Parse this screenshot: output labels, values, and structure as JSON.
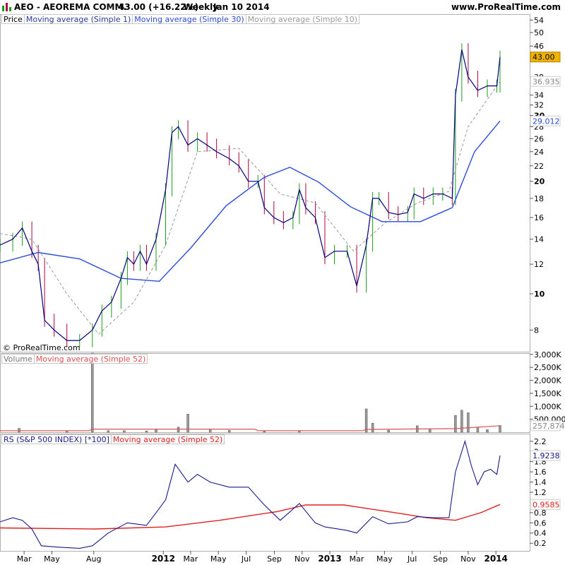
{
  "header": {
    "title": "AEO - AEOREMA COMM.",
    "price_change": "43.00 (+16.22%)",
    "period": "Weekly",
    "date": "Jan 10 2014",
    "site": "www.ProRealTime.com"
  },
  "copyright": "© ProRealTime.com",
  "legends": {
    "price": [
      "Price",
      "Moving average (Simple 1)",
      "Moving average (Simple 30)",
      "Moving average (Simple 10)"
    ],
    "volume": [
      "Volume",
      "Moving average (Simple 52)"
    ],
    "rs": [
      "RS (S&P 500 INDEX) [*100]",
      "Moving average (Simple 52)"
    ]
  },
  "colors": {
    "up_bar": "#1a9e1a",
    "down_bar": "#b00040",
    "price_line": "#000080",
    "ma30": "#2a4bdb",
    "ma10": "#9a9a9a",
    "volume_bar": "#9a9a9a",
    "volume_ma": "#e05050",
    "rs_line": "#1a1a8c",
    "rs_ma": "#e02020",
    "last_price_badge": "#f0b400"
  },
  "chart_data": [
    {
      "type": "line",
      "panel": "price",
      "scale": "log",
      "ylim": [
        7,
        56
      ],
      "yticks": [
        "8",
        "10",
        "12",
        "14",
        "16",
        "18",
        "20",
        "22",
        "24",
        "26",
        "28",
        "30",
        "32",
        "34",
        "38",
        "46",
        "50",
        "54"
      ],
      "xticks": [
        "Mar",
        "May",
        "Aug",
        "2012",
        "Mar",
        "May",
        "Jul",
        "Sep",
        "Nov",
        "2013",
        "Mar",
        "May",
        "Jul",
        "Sep",
        "Nov",
        "2014"
      ],
      "x_range": [
        "2011-01-07",
        "2014-01-10"
      ],
      "series": [
        {
          "name": "Moving average (Simple 1)",
          "points": [
            [
              "2011-01-07",
              13.5
            ],
            [
              "2011-02-04",
              14.0
            ],
            [
              "2011-02-25",
              15.0
            ],
            [
              "2011-03-18",
              13.0
            ],
            [
              "2011-04-01",
              12.0
            ],
            [
              "2011-04-15",
              8.5
            ],
            [
              "2011-05-06",
              8.0
            ],
            [
              "2011-06-03",
              7.5
            ],
            [
              "2011-07-01",
              7.5
            ],
            [
              "2011-07-29",
              8.0
            ],
            [
              "2011-08-19",
              9.0
            ],
            [
              "2011-09-09",
              9.5
            ],
            [
              "2011-09-30",
              11.0
            ],
            [
              "2011-10-14",
              12.5
            ],
            [
              "2011-10-28",
              12.0
            ],
            [
              "2011-11-11",
              13.0
            ],
            [
              "2011-11-25",
              12.0
            ],
            [
              "2011-12-16",
              14.0
            ],
            [
              "2012-01-06",
              19.0
            ],
            [
              "2012-01-20",
              27.0
            ],
            [
              "2012-02-03",
              28.0
            ],
            [
              "2012-02-24",
              25.0
            ],
            [
              "2012-03-16",
              26.0
            ],
            [
              "2012-04-06",
              25.0
            ],
            [
              "2012-04-27",
              24.0
            ],
            [
              "2012-05-25",
              23.0
            ],
            [
              "2012-06-15",
              22.0
            ],
            [
              "2012-07-06",
              20.0
            ],
            [
              "2012-07-27",
              20.0
            ],
            [
              "2012-08-10",
              17.0
            ],
            [
              "2012-08-31",
              16.0
            ],
            [
              "2012-09-21",
              15.5
            ],
            [
              "2012-10-12",
              16.0
            ],
            [
              "2012-10-26",
              19.0
            ],
            [
              "2012-11-09",
              17.0
            ],
            [
              "2012-11-30",
              16.0
            ],
            [
              "2012-12-21",
              12.5
            ],
            [
              "2013-01-11",
              13.0
            ],
            [
              "2013-02-08",
              13.0
            ],
            [
              "2013-03-01",
              10.5
            ],
            [
              "2013-03-22",
              13.5
            ],
            [
              "2013-04-05",
              18.0
            ],
            [
              "2013-04-19",
              18.0
            ],
            [
              "2013-05-10",
              16.5
            ],
            [
              "2013-05-31",
              16.3
            ],
            [
              "2013-06-21",
              16.5
            ],
            [
              "2013-07-05",
              18.5
            ],
            [
              "2013-07-26",
              18.0
            ],
            [
              "2013-08-16",
              18.5
            ],
            [
              "2013-09-06",
              18.5
            ],
            [
              "2013-09-27",
              18.0
            ],
            [
              "2013-10-04",
              34.0
            ],
            [
              "2013-10-18",
              45.0
            ],
            [
              "2013-11-01",
              38.0
            ],
            [
              "2013-11-22",
              35.0
            ],
            [
              "2013-12-13",
              36.0
            ],
            [
              "2014-01-03",
              36.0
            ],
            [
              "2014-01-10",
              43.0
            ]
          ]
        },
        {
          "name": "Moving average (Simple 30)",
          "points": [
            [
              "2011-01-07",
              12.1
            ],
            [
              "2011-04-01",
              12.9
            ],
            [
              "2011-07-01",
              12.4
            ],
            [
              "2011-09-30",
              11.0
            ],
            [
              "2011-12-23",
              10.8
            ],
            [
              "2012-03-02",
              13.3
            ],
            [
              "2012-05-18",
              17.2
            ],
            [
              "2012-08-10",
              20.5
            ],
            [
              "2012-10-05",
              21.8
            ],
            [
              "2012-12-07",
              19.9
            ],
            [
              "2013-02-15",
              17.1
            ],
            [
              "2013-04-26",
              15.6
            ],
            [
              "2013-07-19",
              15.6
            ],
            [
              "2013-09-27",
              17.0
            ],
            [
              "2013-11-15",
              24.0
            ],
            [
              "2014-01-10",
              29.0
            ]
          ]
        },
        {
          "name": "Moving average (Simple 10)",
          "points": [
            [
              "2011-01-07",
              14.5
            ],
            [
              "2011-03-18",
              14.0
            ],
            [
              "2011-06-03",
              10.0
            ],
            [
              "2011-08-12",
              7.8
            ],
            [
              "2011-10-28",
              9.5
            ],
            [
              "2012-01-06",
              13.5
            ],
            [
              "2012-03-16",
              24.0
            ],
            [
              "2012-06-15",
              24.5
            ],
            [
              "2012-09-14",
              18.5
            ],
            [
              "2012-11-30",
              17.5
            ],
            [
              "2013-02-22",
              13.0
            ],
            [
              "2013-05-03",
              15.5
            ],
            [
              "2013-07-12",
              17.5
            ],
            [
              "2013-09-20",
              18.8
            ],
            [
              "2013-11-01",
              28.0
            ],
            [
              "2014-01-10",
              37.0
            ]
          ]
        }
      ],
      "last_labels": [
        {
          "series": "Moving average (Simple 1)",
          "text": "43.00"
        },
        {
          "series": "Moving average (Simple 10)",
          "text": "36.935"
        },
        {
          "series": "Moving average (Simple 30)",
          "text": "29.012"
        }
      ]
    },
    {
      "type": "bar",
      "panel": "volume",
      "ylim": [
        0,
        3050000
      ],
      "yticks": [
        "500,000",
        "1,000K",
        "1,500K",
        "2,000K",
        "2,500K",
        "3,000K"
      ],
      "bars": [
        [
          "2011-02-18",
          150000
        ],
        [
          "2011-06-03",
          60000
        ],
        [
          "2011-07-29",
          3050000
        ],
        [
          "2011-09-02",
          60000
        ],
        [
          "2011-10-07",
          60000
        ],
        [
          "2011-11-25",
          50000
        ],
        [
          "2011-12-16",
          90000
        ],
        [
          "2012-02-03",
          200000
        ],
        [
          "2012-02-24",
          700000
        ],
        [
          "2012-04-13",
          120000
        ],
        [
          "2012-05-25",
          70000
        ],
        [
          "2012-08-10",
          50000
        ],
        [
          "2012-10-26",
          50000
        ],
        [
          "2013-03-22",
          900000
        ],
        [
          "2013-04-05",
          350000
        ],
        [
          "2013-05-10",
          80000
        ],
        [
          "2013-07-12",
          250000
        ],
        [
          "2013-08-09",
          120000
        ],
        [
          "2013-10-04",
          650000
        ],
        [
          "2013-10-18",
          850000
        ],
        [
          "2013-11-01",
          750000
        ],
        [
          "2013-11-22",
          200000
        ],
        [
          "2013-12-13",
          100000
        ],
        [
          "2014-01-10",
          260000
        ]
      ],
      "series": [
        {
          "name": "Moving average (Simple 52)",
          "points": [
            [
              "2011-01-07",
              60000
            ],
            [
              "2011-07-22",
              60000
            ],
            [
              "2011-07-29",
              120000
            ],
            [
              "2012-07-20",
              120000
            ],
            [
              "2012-07-27",
              60000
            ],
            [
              "2013-03-15",
              60000
            ],
            [
              "2013-03-22",
              110000
            ],
            [
              "2013-10-04",
              140000
            ],
            [
              "2014-01-10",
              250000
            ]
          ]
        }
      ],
      "last_labels": [
        {
          "series": "Moving average (Simple 52)",
          "text": "257,874"
        }
      ]
    },
    {
      "type": "line",
      "panel": "rs",
      "ylim": [
        0.05,
        2.35
      ],
      "yticks": [
        "0.2",
        "0.4",
        "0.6",
        "0.8",
        "1",
        "1.2",
        "1.4",
        "1.6",
        "1.8",
        "2",
        "2.2"
      ],
      "series": [
        {
          "name": "RS (S&P 500 INDEX) [*100]",
          "points": [
            [
              "2011-01-07",
              0.62
            ],
            [
              "2011-02-04",
              0.7
            ],
            [
              "2011-02-25",
              0.65
            ],
            [
              "2011-03-18",
              0.48
            ],
            [
              "2011-04-08",
              0.15
            ],
            [
              "2011-05-20",
              0.12
            ],
            [
              "2011-07-01",
              0.1
            ],
            [
              "2011-07-29",
              0.15
            ],
            [
              "2011-09-02",
              0.4
            ],
            [
              "2011-10-14",
              0.6
            ],
            [
              "2011-11-25",
              0.55
            ],
            [
              "2011-12-16",
              0.8
            ],
            [
              "2012-01-06",
              1.05
            ],
            [
              "2012-01-27",
              1.75
            ],
            [
              "2012-02-24",
              1.4
            ],
            [
              "2012-03-16",
              1.55
            ],
            [
              "2012-04-13",
              1.4
            ],
            [
              "2012-05-25",
              1.3
            ],
            [
              "2012-07-06",
              1.3
            ],
            [
              "2012-08-10",
              0.95
            ],
            [
              "2012-09-14",
              0.65
            ],
            [
              "2012-10-26",
              0.98
            ],
            [
              "2012-11-30",
              0.6
            ],
            [
              "2012-12-21",
              0.52
            ],
            [
              "2013-02-08",
              0.45
            ],
            [
              "2013-03-01",
              0.4
            ],
            [
              "2013-04-05",
              0.72
            ],
            [
              "2013-05-10",
              0.58
            ],
            [
              "2013-06-21",
              0.62
            ],
            [
              "2013-07-12",
              0.72
            ],
            [
              "2013-08-16",
              0.7
            ],
            [
              "2013-09-20",
              0.7
            ],
            [
              "2013-10-04",
              1.6
            ],
            [
              "2013-10-25",
              2.2
            ],
            [
              "2013-11-08",
              1.72
            ],
            [
              "2013-11-22",
              1.35
            ],
            [
              "2013-12-06",
              1.6
            ],
            [
              "2013-12-20",
              1.65
            ],
            [
              "2014-01-03",
              1.55
            ],
            [
              "2014-01-10",
              1.92
            ]
          ]
        },
        {
          "name": "Moving average (Simple 52)",
          "points": [
            [
              "2011-01-07",
              0.5
            ],
            [
              "2011-08-05",
              0.48
            ],
            [
              "2012-01-06",
              0.52
            ],
            [
              "2012-05-04",
              0.65
            ],
            [
              "2012-09-07",
              0.82
            ],
            [
              "2012-11-09",
              0.95
            ],
            [
              "2013-02-01",
              0.95
            ],
            [
              "2013-06-07",
              0.78
            ],
            [
              "2013-08-02",
              0.7
            ],
            [
              "2013-10-04",
              0.65
            ],
            [
              "2013-11-29",
              0.8
            ],
            [
              "2014-01-10",
              0.96
            ]
          ]
        }
      ],
      "last_labels": [
        {
          "series": "RS (S&P 500 INDEX) [*100]",
          "text": "1.9238"
        },
        {
          "series": "Moving average (Simple 52)",
          "text": "0.9585"
        }
      ]
    }
  ]
}
